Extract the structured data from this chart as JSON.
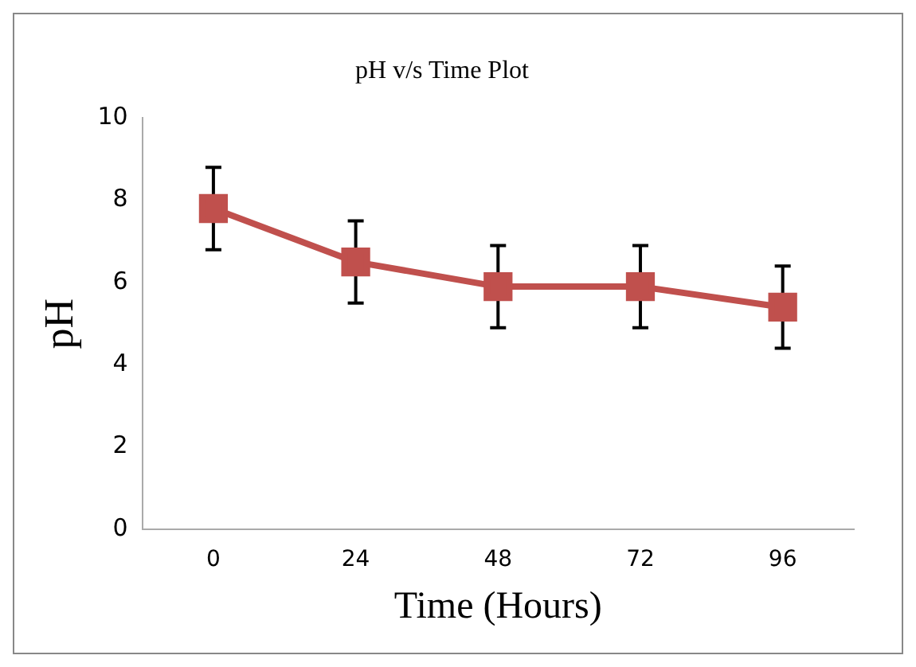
{
  "chart_data": {
    "type": "line",
    "title": "pH v/s Time Plot",
    "xlabel": "Time (Hours)",
    "ylabel": "pH",
    "categories": [
      "0",
      "24",
      "48",
      "72",
      "96"
    ],
    "series": [
      {
        "color": "#c0504d",
        "values": [
          7.8,
          6.5,
          5.9,
          5.9,
          5.4
        ],
        "errors": [
          1,
          1,
          1,
          1,
          1
        ]
      }
    ],
    "ylim": [
      0,
      10
    ],
    "yticks": [
      0,
      2,
      4,
      6,
      8,
      10
    ],
    "grid": false,
    "legend": false,
    "marker": "square",
    "line_style": "solid"
  }
}
